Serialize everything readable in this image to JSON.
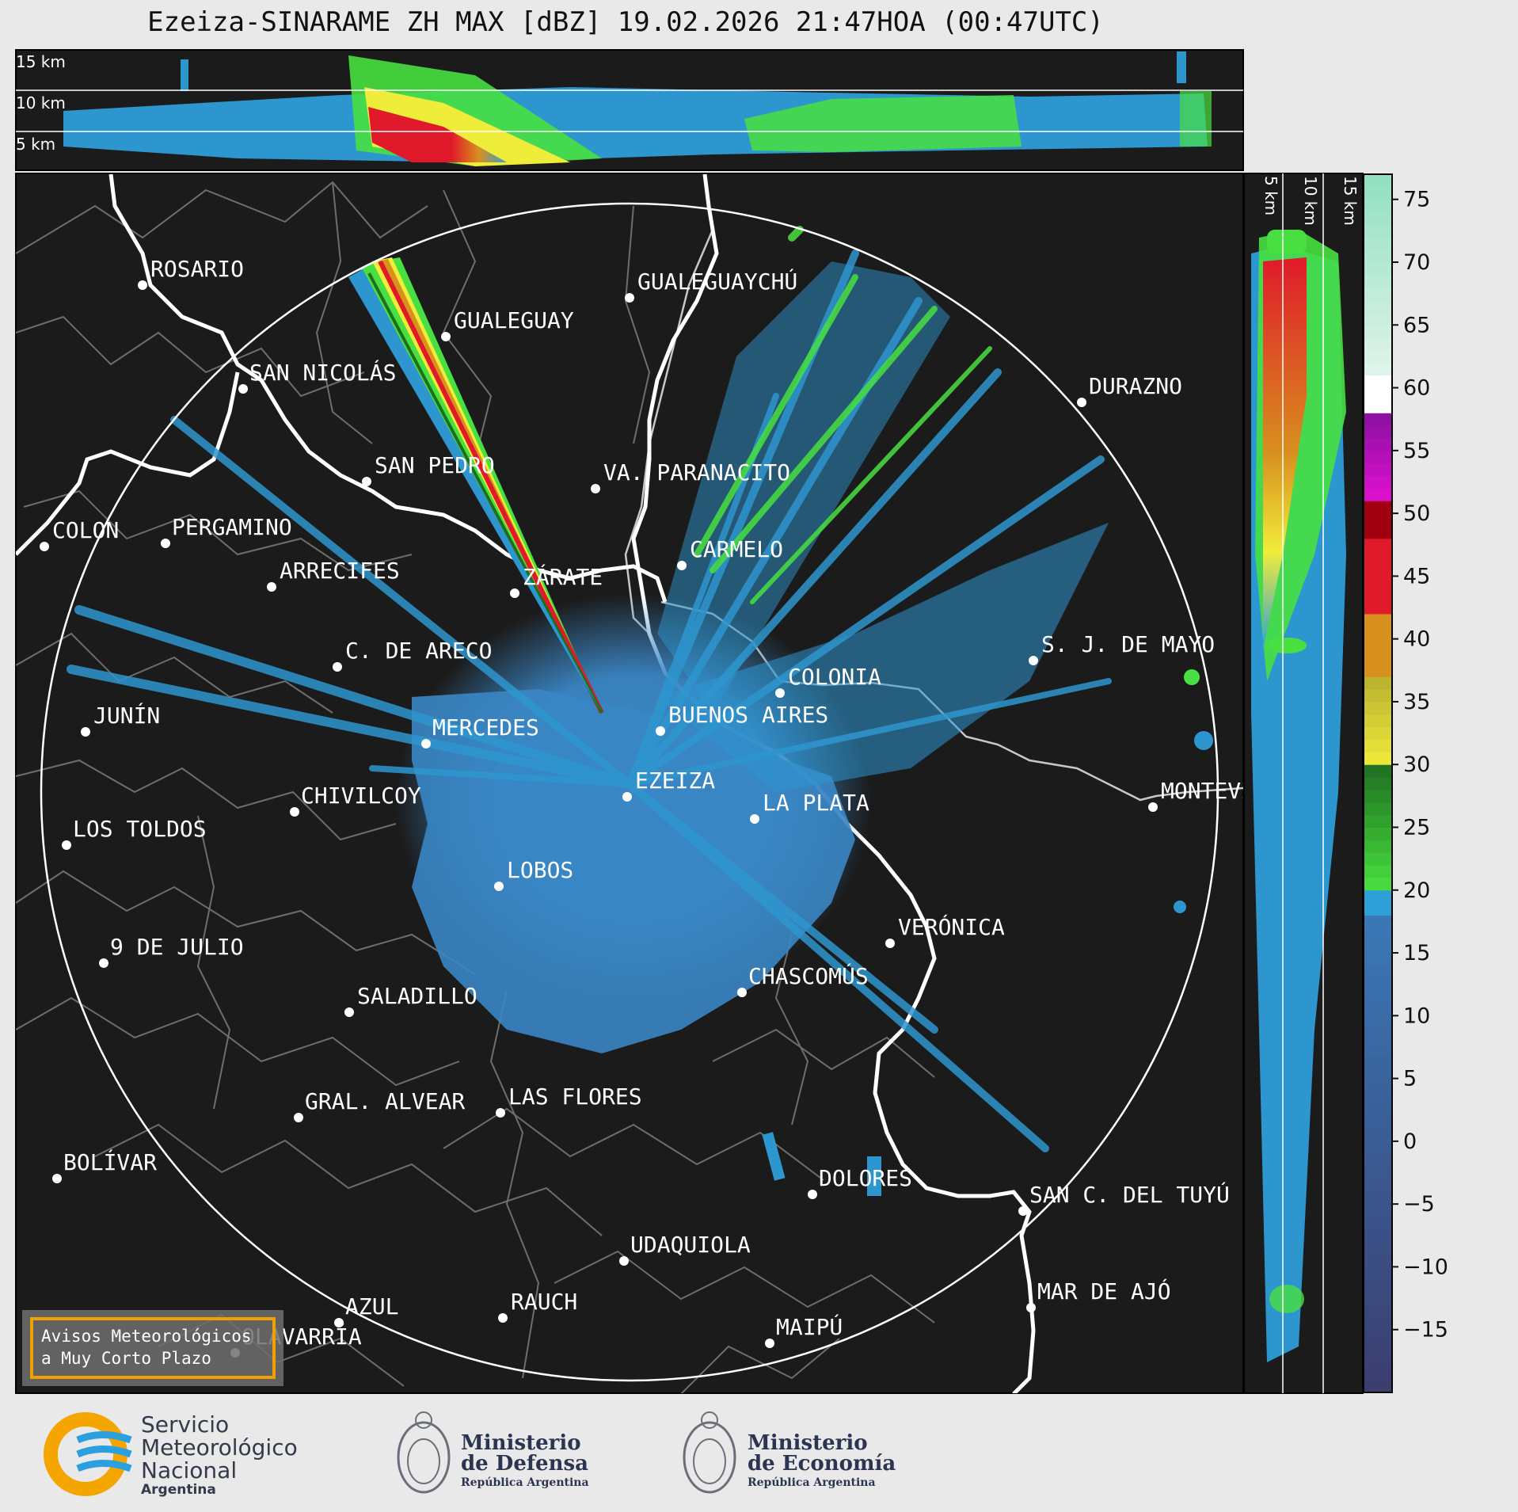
{
  "title": "Ezeiza-SINARAME ZH MAX [dBZ] 19.02.2026 21:47HOA (00:47UTC)",
  "top_panel_heights": [
    "15 km",
    "10 km",
    "5 km"
  ],
  "side_panel_heights": [
    "5 km",
    "10 km",
    "15 km"
  ],
  "cities": [
    {
      "label": "ROSARIO"
    },
    {
      "label": "GUALEGUAYCHÚ"
    },
    {
      "label": "GUALEGUAY"
    },
    {
      "label": "SAN NICOLÁS"
    },
    {
      "label": "DURAZNO"
    },
    {
      "label": "SAN PEDRO"
    },
    {
      "label": "VA. PARANACITO"
    },
    {
      "label": "COLON"
    },
    {
      "label": "PERGAMINO"
    },
    {
      "label": "CARMELO"
    },
    {
      "label": "ARRECIFES"
    },
    {
      "label": "ZÁRATE"
    },
    {
      "label": "S. J. DE MAYO"
    },
    {
      "label": "C. DE ARECO"
    },
    {
      "label": "COLONIA"
    },
    {
      "label": "JUNÍN"
    },
    {
      "label": "BUENOS AIRES"
    },
    {
      "label": "MERCEDES"
    },
    {
      "label": "EZEIZA"
    },
    {
      "label": "MONTEVIDEO"
    },
    {
      "label": "CHIVILCOY"
    },
    {
      "label": "LA PLATA"
    },
    {
      "label": "LOS TOLDOS"
    },
    {
      "label": "LOBOS"
    },
    {
      "label": "VERÓNICA"
    },
    {
      "label": "9 DE JULIO"
    },
    {
      "label": "CHASCOMÚS"
    },
    {
      "label": "SALADILLO"
    },
    {
      "label": "GRAL. ALVEAR"
    },
    {
      "label": "LAS FLORES"
    },
    {
      "label": "BOLÍVAR"
    },
    {
      "label": "DOLORES"
    },
    {
      "label": "SAN C. DEL TUYÚ"
    },
    {
      "label": "UDAQUIOLA"
    },
    {
      "label": "MAR DE AJÓ"
    },
    {
      "label": "AZUL"
    },
    {
      "label": "RAUCH"
    },
    {
      "label": "MAIPÚ"
    },
    {
      "label": "OLAVARRÍA"
    }
  ],
  "colorbar": {
    "ticks": [
      "75",
      "70",
      "65",
      "60",
      "55",
      "50",
      "45",
      "40",
      "35",
      "30",
      "25",
      "20",
      "15",
      "10",
      "5",
      "0",
      "−5",
      "−10",
      "−15"
    ],
    "range": [
      -20,
      77
    ],
    "colors": {
      "low": "#3b3d6e",
      "blue_mid": "#3a78b6",
      "blue_light": "#2ea0d8",
      "green_light": "#48e040",
      "green_dark": "#1f6e1f",
      "yellow": "#f0ec3a",
      "orange": "#d8901e",
      "red": "#e01a2a",
      "dark_red": "#a00010",
      "magenta": "#e010d0",
      "purple": "#8a10a0",
      "white": "#ffffff",
      "teal": "#90e0c0"
    }
  },
  "aviso": {
    "line1": "Avisos Meteorológicos",
    "line2": "a Muy Corto Plazo"
  },
  "logos": {
    "smn": {
      "line1": "Servicio",
      "line2": "Meteorológico",
      "line3": "Nacional",
      "line4": "Argentina"
    },
    "defensa": {
      "line1": "Ministerio",
      "line2": "de Defensa",
      "line3": "República Argentina"
    },
    "economia": {
      "line1": "Ministerio",
      "line2": "de Economía",
      "line3": "República Argentina"
    }
  }
}
